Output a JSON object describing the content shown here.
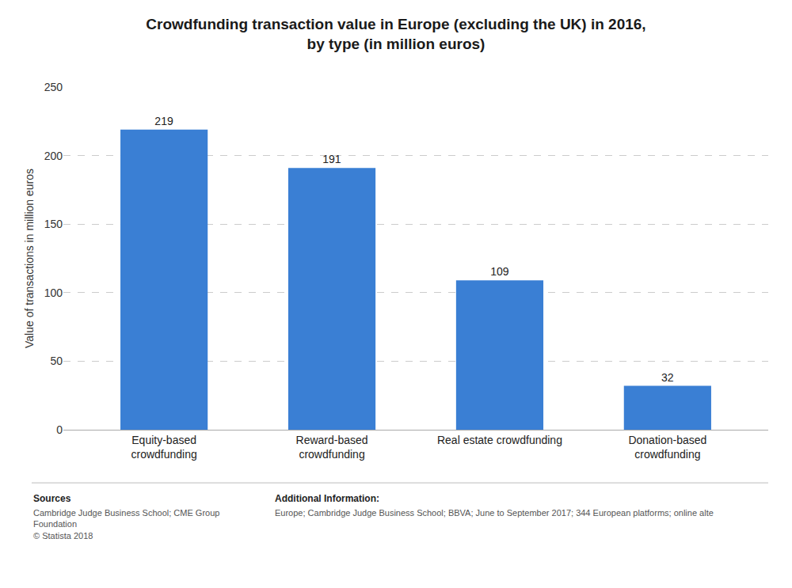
{
  "chart_data": {
    "type": "bar",
    "title": "Crowdfunding transaction value in Europe (excluding the UK) in 2016,\nby type (in million euros)",
    "y_label": "Value of transactions in million euros",
    "categories": [
      "Equity-based\ncrowdfunding",
      "Reward-based\ncrowdfunding",
      "Real estate crowdfunding",
      "Donation-based\ncrowdfunding"
    ],
    "values": [
      219,
      191,
      109,
      32
    ],
    "color": "#3a7fd4",
    "ylim": [
      0,
      250
    ],
    "yticks": [
      0,
      50,
      100,
      150,
      200,
      250
    ],
    "grid": true,
    "data_labels": true,
    "annotations": [
      "Sources",
      "Cambridge Judge Business School; CME Group\nFoundation\n© Statista 2018",
      "Additional Information:",
      "Europe; Cambridge Judge Business School; BBVA; June to September 2017; 344 European platforms; online alte"
    ]
  }
}
